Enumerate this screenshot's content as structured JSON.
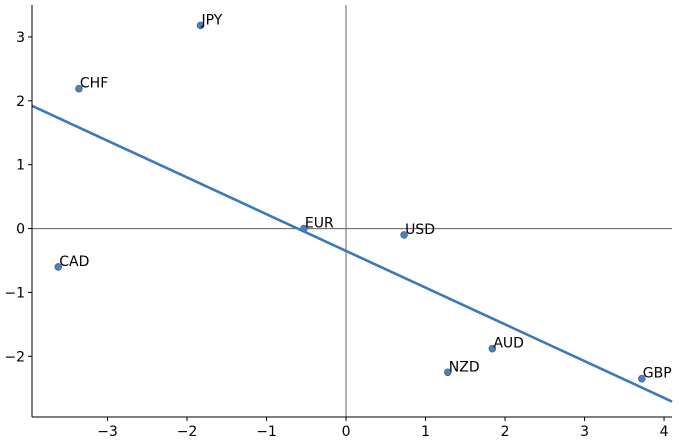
{
  "chart_data": {
    "type": "scatter",
    "title": "",
    "xlabel": "",
    "ylabel": "",
    "xlim": [
      -3.95,
      4.1
    ],
    "ylim": [
      -2.95,
      3.5
    ],
    "xticks": [
      -3,
      -2,
      -1,
      0,
      1,
      2,
      3,
      4
    ],
    "yticks": [
      -2,
      -1,
      0,
      1,
      2,
      3
    ],
    "xtick_labels": [
      "−3",
      "−2",
      "−1",
      "0",
      "1",
      "2",
      "3",
      "4"
    ],
    "ytick_labels": [
      "−2",
      "−1",
      "0",
      "1",
      "2",
      "3"
    ],
    "reference_lines": {
      "x": 0,
      "y": 0
    },
    "grid": false,
    "points": [
      {
        "label": "JPY",
        "x": -1.83,
        "y": 3.18
      },
      {
        "label": "CHF",
        "x": -3.36,
        "y": 2.19
      },
      {
        "label": "CAD",
        "x": -3.62,
        "y": -0.6
      },
      {
        "label": "EUR",
        "x": -0.53,
        "y": 0.0
      },
      {
        "label": "USD",
        "x": 0.73,
        "y": -0.1
      },
      {
        "label": "AUD",
        "x": 1.84,
        "y": -1.88
      },
      {
        "label": "NZD",
        "x": 1.28,
        "y": -2.25
      },
      {
        "label": "GBP",
        "x": 3.72,
        "y": -2.35
      }
    ],
    "fit_line": {
      "slope": -0.575,
      "intercept": -0.35
    },
    "colors": {
      "points": "#4f81b8",
      "line": "#3b7ab8",
      "axes": "#000000",
      "reference": "#606060"
    }
  }
}
